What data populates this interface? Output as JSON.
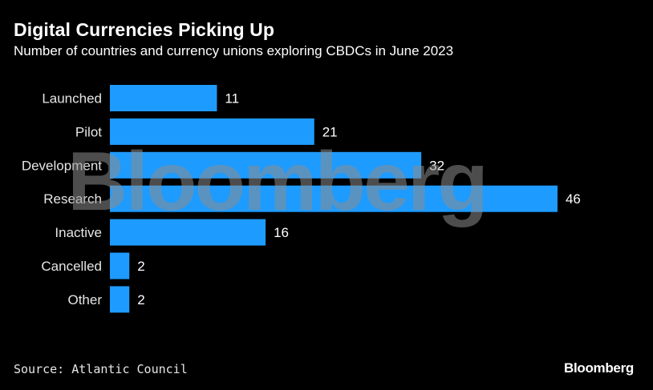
{
  "header": {
    "title": "Digital Currencies Picking Up",
    "subtitle": "Number of countries and currency unions exploring CBDCs in June 2023"
  },
  "chart_data": {
    "type": "bar",
    "orientation": "horizontal",
    "categories": [
      "Launched",
      "Pilot",
      "Development",
      "Research",
      "Inactive",
      "Cancelled",
      "Other"
    ],
    "values": [
      11,
      21,
      32,
      46,
      16,
      2,
      2
    ],
    "bar_color": "#1e9bff",
    "grid": false
  },
  "footer": {
    "source": "Source: Atlantic Council",
    "brand": "Bloomberg"
  },
  "watermark": "Bloomberg"
}
